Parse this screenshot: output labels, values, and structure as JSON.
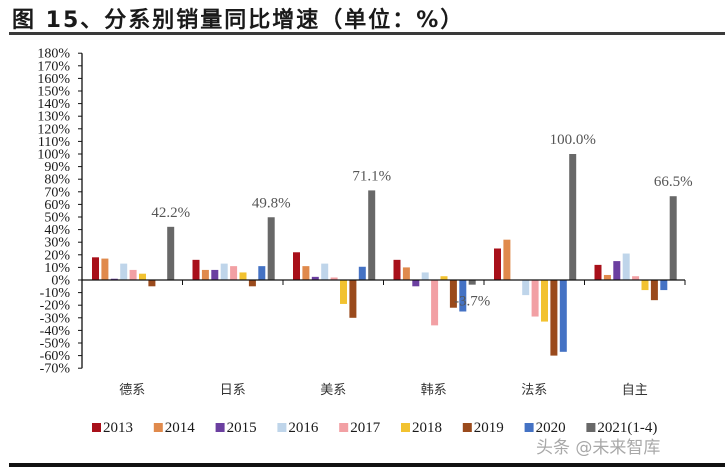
{
  "header": {
    "title": "图 15、分系别销量同比增速（单位：%）"
  },
  "watermark": "头条 @未来智库",
  "chart_data": {
    "type": "bar",
    "title": "图 15、分系别销量同比增速（单位：%）",
    "xlabel": "",
    "ylabel": "",
    "categories": [
      "德系",
      "日系",
      "美系",
      "韩系",
      "法系",
      "自主"
    ],
    "ylim": [
      -70,
      180
    ],
    "yticks": [
      180,
      170,
      160,
      150,
      140,
      130,
      120,
      110,
      100,
      90,
      80,
      70,
      60,
      50,
      40,
      30,
      20,
      10,
      0,
      -10,
      -20,
      -30,
      -40,
      -50,
      -60,
      -70
    ],
    "ytick_suffix": "%",
    "grid": false,
    "legend_position": "bottom",
    "series": [
      {
        "name": "2013",
        "color": "#A8101A",
        "values": [
          18,
          16,
          22,
          16,
          25,
          12
        ]
      },
      {
        "name": "2014",
        "color": "#E08A4C",
        "values": [
          17,
          8,
          11,
          10,
          32,
          4
        ]
      },
      {
        "name": "2015",
        "color": "#6B3FA0",
        "values": [
          1,
          8,
          2.5,
          -5,
          0,
          15
        ]
      },
      {
        "name": "2016",
        "color": "#BFD5EA",
        "values": [
          13,
          13,
          13,
          6,
          -12,
          21
        ]
      },
      {
        "name": "2017",
        "color": "#F2A0A4",
        "values": [
          8,
          11,
          2,
          -36,
          -29,
          3
        ]
      },
      {
        "name": "2018",
        "color": "#F2C230",
        "values": [
          5,
          6,
          -19,
          3,
          -33,
          -8
        ]
      },
      {
        "name": "2019",
        "color": "#9A4A1C",
        "values": [
          -5,
          -5,
          -30,
          -22,
          -60,
          -16
        ]
      },
      {
        "name": "2020",
        "color": "#4472C4",
        "values": [
          0,
          11,
          10.5,
          -25,
          -57,
          -8
        ]
      },
      {
        "name": "2021(1-4)",
        "color": "#686868",
        "values": [
          42.2,
          49.8,
          71.1,
          -3.7,
          100.0,
          66.5
        ]
      }
    ],
    "data_labels": {
      "series": "2021(1-4)",
      "labels": [
        "42.2%",
        "49.8%",
        "71.1%",
        "-3.7%",
        "100.0%",
        "66.5%"
      ]
    }
  }
}
